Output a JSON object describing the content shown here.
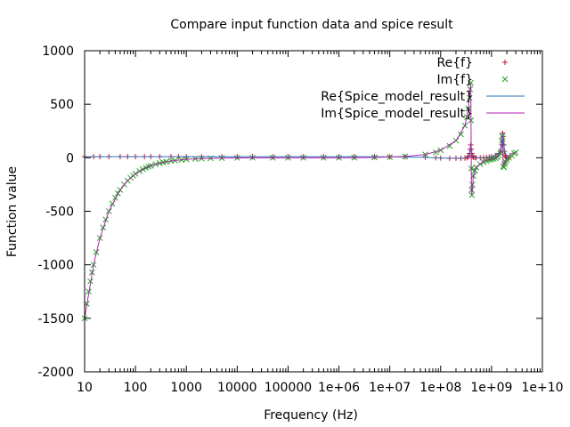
{
  "chart_data": {
    "type": "scatter",
    "title": "Compare input function data and spice result",
    "xlabel": "Frequency (Hz)",
    "ylabel": "Function value",
    "xscale": "log",
    "xlim": [
      10,
      10000000000
    ],
    "ylim": [
      -2000,
      1000
    ],
    "x_ticks": [
      {
        "value": 10,
        "label": "10"
      },
      {
        "value": 100,
        "label": "100"
      },
      {
        "value": 1000,
        "label": "1000"
      },
      {
        "value": 10000,
        "label": "10000"
      },
      {
        "value": 100000,
        "label": "100000"
      },
      {
        "value": 1000000,
        "label": "1e+06"
      },
      {
        "value": 10000000,
        "label": "1e+07"
      },
      {
        "value": 100000000,
        "label": "1e+08"
      },
      {
        "value": 1000000000,
        "label": "1e+09"
      },
      {
        "value": 10000000000,
        "label": "1e+10"
      }
    ],
    "y_ticks": [
      {
        "value": 1000,
        "label": "1000"
      },
      {
        "value": 500,
        "label": "500"
      },
      {
        "value": 0,
        "label": "0"
      },
      {
        "value": -500,
        "label": "-500"
      },
      {
        "value": -1000,
        "label": "-1000"
      },
      {
        "value": -1500,
        "label": "-1500"
      },
      {
        "value": -2000,
        "label": "-2000"
      }
    ],
    "grid": false,
    "legend_position": "top-right",
    "series": [
      {
        "name": "Re{f}",
        "style": "plus",
        "color": "#cc1030",
        "x": [
          10,
          15,
          20,
          30,
          50,
          70,
          100,
          150,
          200,
          300,
          500,
          700,
          1000,
          2000,
          5000,
          10000,
          20000,
          50000,
          100000,
          200000,
          500000,
          1000000,
          2000000,
          5000000,
          10000000,
          20000000,
          50000000,
          80000000,
          100000000,
          150000000,
          200000000,
          250000000,
          300000000,
          330000000,
          350000000,
          370000000,
          380000000,
          390000000,
          400000000,
          410000000,
          420000000,
          440000000,
          470000000,
          500000000,
          600000000,
          700000000,
          800000000,
          900000000,
          1000000000,
          1200000000,
          1400000000,
          1500000000,
          1600000000,
          1650000000,
          1700000000,
          1750000000,
          1800000000,
          1850000000,
          1900000000,
          2000000000,
          2200000000
        ],
        "values": [
          10,
          10,
          10,
          10,
          10,
          10,
          10,
          10,
          10,
          10,
          10,
          10,
          10,
          10,
          10,
          10,
          10,
          10,
          10,
          10,
          10,
          10,
          10,
          10,
          9,
          8,
          4,
          0,
          -2,
          -4,
          -5,
          -5,
          -3,
          0,
          10,
          40,
          80,
          120,
          80,
          40,
          15,
          5,
          2,
          0,
          0,
          1,
          3,
          6,
          10,
          20,
          40,
          60,
          120,
          230,
          200,
          120,
          60,
          25,
          10,
          5,
          0
        ]
      },
      {
        "name": "Im{f}",
        "style": "cross",
        "color": "#21a121",
        "x": [
          10,
          11,
          12,
          13,
          14,
          15,
          17,
          20,
          23,
          26,
          30,
          35,
          40,
          45,
          50,
          60,
          70,
          80,
          90,
          100,
          120,
          140,
          160,
          180,
          200,
          250,
          300,
          350,
          400,
          500,
          600,
          800,
          1000,
          1500,
          2000,
          3000,
          5000,
          10000,
          20000,
          50000,
          100000,
          200000,
          500000,
          1000000,
          2000000,
          5000000,
          10000000,
          20000000,
          50000000,
          80000000,
          100000000,
          150000000,
          200000000,
          250000000,
          300000000,
          330000000,
          350000000,
          370000000,
          380000000,
          390000000,
          395000000,
          400000000,
          405000000,
          410000000,
          420000000,
          440000000,
          470000000,
          500000000,
          600000000,
          700000000,
          800000000,
          900000000,
          1000000000,
          1100000000,
          1200000000,
          1300000000,
          1400000000,
          1500000000,
          1550000000,
          1600000000,
          1620000000,
          1650000000,
          1700000000,
          1750000000,
          1800000000,
          1900000000,
          2000000000,
          2200000000,
          2500000000,
          2800000000,
          3000000000
        ],
        "values": [
          -1500,
          -1364,
          -1250,
          -1154,
          -1071,
          -1000,
          -882,
          -750,
          -652,
          -577,
          -500,
          -429,
          -375,
          -333,
          -300,
          -250,
          -214,
          -188,
          -167,
          -150,
          -125,
          -107,
          -94,
          -83,
          -75,
          -60,
          -50,
          -43,
          -38,
          -30,
          -25,
          -19,
          -15,
          -10,
          -8,
          -5,
          -3,
          -1,
          0,
          0,
          0,
          0,
          0,
          0,
          1,
          3,
          6,
          12,
          30,
          50,
          70,
          110,
          160,
          220,
          300,
          380,
          460,
          560,
          640,
          700,
          350,
          -100,
          -300,
          -350,
          -250,
          -170,
          -120,
          -90,
          -60,
          -40,
          -30,
          -20,
          -15,
          -10,
          -5,
          5,
          20,
          40,
          60,
          160,
          200,
          140,
          -80,
          -90,
          -60,
          -40,
          -20,
          0,
          20,
          40,
          50
        ]
      },
      {
        "name": "Re{Spice_model_result}",
        "style": "line",
        "color": "#2a74b8",
        "x": [
          10,
          1000,
          1000000,
          10000000,
          50000000,
          100000000,
          200000000,
          300000000,
          350000000,
          380000000,
          390000000,
          400000000,
          410000000,
          420000000,
          450000000,
          500000000,
          700000000,
          1000000000,
          1400000000,
          1500000000,
          1600000000,
          1650000000,
          1700000000,
          1800000000,
          2000000000
        ],
        "values": [
          10,
          10,
          10,
          9,
          4,
          -2,
          -5,
          -3,
          10,
          80,
          120,
          80,
          40,
          15,
          4,
          0,
          1,
          10,
          40,
          60,
          120,
          230,
          200,
          60,
          10
        ]
      },
      {
        "name": "Im{Spice_model_result}",
        "style": "line",
        "color": "#b020b0",
        "x": [
          10,
          15,
          20,
          30,
          50,
          70,
          100,
          150,
          200,
          300,
          500,
          1000,
          2000,
          5000,
          10000,
          100000,
          1000000,
          5000000,
          20000000,
          50000000,
          100000000,
          200000000,
          300000000,
          350000000,
          380000000,
          390000000,
          395000000,
          400000000,
          405000000,
          410000000,
          440000000,
          500000000,
          700000000,
          1000000000,
          1300000000,
          1500000000,
          1600000000,
          1650000000,
          1700000000,
          1800000000,
          2000000000,
          2500000000,
          3000000000
        ],
        "values": [
          -1500,
          -1000,
          -750,
          -500,
          -300,
          -214,
          -150,
          -100,
          -75,
          -50,
          -30,
          -15,
          -8,
          -3,
          -1,
          0,
          0,
          3,
          12,
          30,
          70,
          160,
          300,
          460,
          640,
          700,
          350,
          -100,
          -300,
          -350,
          -170,
          -90,
          -30,
          -15,
          5,
          60,
          160,
          200,
          -80,
          -40,
          0,
          40,
          50
        ]
      }
    ]
  }
}
